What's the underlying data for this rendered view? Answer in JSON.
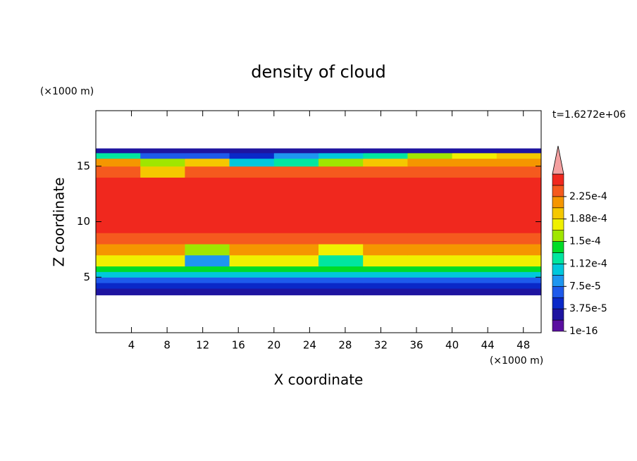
{
  "chart_data": {
    "type": "contour",
    "title": "density of cloud",
    "xlabel": "X coordinate",
    "ylabel": "Z coordinate",
    "x_unit": "(×1000 m)",
    "y_unit": "(×1000 m)",
    "annotation": "t=1.6272e+06",
    "xlim": [
      0,
      50
    ],
    "ylim": [
      0,
      20
    ],
    "xticks": [
      4,
      8,
      12,
      16,
      20,
      24,
      28,
      32,
      36,
      40,
      44,
      48
    ],
    "yticks": [
      5,
      10,
      15
    ],
    "x_edges": [
      0,
      5,
      10,
      15,
      20,
      25,
      30,
      35,
      40,
      45,
      50
    ],
    "y_edges": [
      3.4,
      4,
      4.5,
      5,
      5.5,
      6,
      7,
      8,
      9,
      13,
      14,
      15,
      15.7,
      16.2,
      16.6
    ],
    "values": [
      [
        2e-05,
        2e-05,
        2e-05,
        2e-05,
        2e-05,
        2e-05,
        2e-05,
        2e-05,
        2e-05,
        2e-05
      ],
      [
        4.5e-05,
        4.5e-05,
        4.5e-05,
        4.5e-05,
        4.5e-05,
        4.5e-05,
        4.5e-05,
        4.5e-05,
        4.5e-05,
        4.5e-05
      ],
      [
        7e-05,
        7e-05,
        7e-05,
        7e-05,
        7e-05,
        7e-05,
        7e-05,
        7e-05,
        7e-05,
        7e-05
      ],
      [
        0.000105,
        0.000105,
        0.000105,
        0.000105,
        0.000105,
        0.000105,
        0.000105,
        0.000105,
        0.000105,
        0.000105
      ],
      [
        0.000145,
        0.000145,
        0.000145,
        0.000145,
        0.000145,
        0.000145,
        0.000145,
        0.000145,
        0.000145,
        0.000145
      ],
      [
        0.00018,
        0.00018,
        9e-05,
        0.00018,
        0.00018,
        0.00012,
        0.00018,
        0.00018,
        0.00018,
        0.00018
      ],
      [
        0.00021,
        0.00021,
        0.00016,
        0.00021,
        0.00021,
        0.00017,
        0.00021,
        0.00021,
        0.00021,
        0.00021
      ],
      [
        0.000235,
        0.000235,
        0.000235,
        0.000235,
        0.000235,
        0.000235,
        0.000235,
        0.000235,
        0.000235,
        0.000235
      ],
      [
        0.000255,
        0.000255,
        0.000255,
        0.000255,
        0.000255,
        0.000255,
        0.000255,
        0.000255,
        0.000255,
        0.000255
      ],
      [
        0.00025,
        0.00025,
        0.00025,
        0.00025,
        0.00025,
        0.00025,
        0.00025,
        0.00025,
        0.00025,
        0.00025
      ],
      [
        0.00023,
        0.0002,
        0.00023,
        0.00023,
        0.00023,
        0.00023,
        0.00023,
        0.00023,
        0.00023,
        0.00023
      ],
      [
        0.00021,
        0.00016,
        0.00019,
        0.0001,
        0.00013,
        0.00016,
        0.0002,
        0.00021,
        0.00022,
        0.00022
      ],
      [
        0.00013,
        6e-05,
        7e-05,
        5e-05,
        8e-05,
        0.0001,
        0.00012,
        0.00015,
        0.00018,
        0.00019
      ],
      [
        2e-05,
        2e-05,
        2e-05,
        2e-05,
        2e-05,
        2e-05,
        2e-05,
        2e-05,
        2e-05,
        2e-05
      ]
    ],
    "levels": [
      0,
      1.875e-05,
      3.75e-05,
      5.625e-05,
      7.5e-05,
      9.375e-05,
      0.0001125,
      0.00013125,
      0.00015,
      0.00016875,
      0.0001875,
      0.00020625,
      0.000225,
      0.00024375,
      0.0002625
    ],
    "colors": [
      "#5a0fa0",
      "#1e14a0",
      "#0a28c8",
      "#1e5aeb",
      "#1e96f0",
      "#00c8dc",
      "#00e6a0",
      "#00dc28",
      "#a0e600",
      "#f0f000",
      "#f5c800",
      "#f59600",
      "#f55a1e",
      "#f0281e"
    ],
    "extend_color": "#f4a0a0",
    "cticks": [
      {
        "value": 1e-16,
        "label": "1e-16"
      },
      {
        "value": 3.75e-05,
        "label": "3.75e-5"
      },
      {
        "value": 7.5e-05,
        "label": "7.5e-5"
      },
      {
        "value": 0.0001125,
        "label": "1.12e-4"
      },
      {
        "value": 0.00015,
        "label": "1.5e-4"
      },
      {
        "value": 0.0001875,
        "label": "1.88e-4"
      },
      {
        "value": 0.000225,
        "label": "2.25e-4"
      }
    ]
  }
}
